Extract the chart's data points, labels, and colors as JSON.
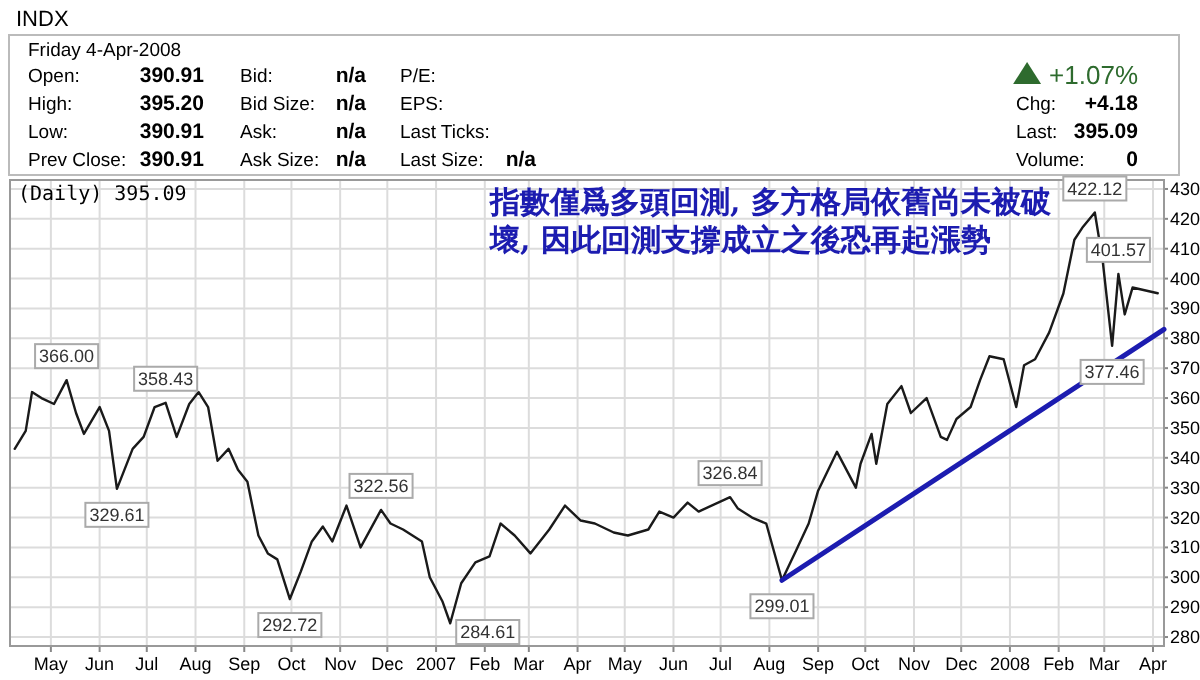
{
  "chart_data": [
    {
      "type": "other",
      "title": "INDX",
      "annotations": [
        "Friday  4-Apr-2008",
        "Open:",
        "390.91",
        "High:",
        "395.20",
        "Low:",
        "390.91",
        "Prev Close:",
        "390.91",
        "Bid:",
        "n/a",
        "Bid Size:",
        "n/a",
        "Ask:",
        "n/a",
        "Ask Size:",
        "n/a",
        "P/E:",
        "EPS:",
        "Last Ticks:",
        "Last Size:",
        "n/a",
        "+1.07%",
        "Chg:",
        "+4.18",
        "Last:",
        "395.09",
        "Volume:",
        "0"
      ]
    },
    {
      "type": "line",
      "title": "(Daily) 395.09",
      "grid": true,
      "xlim": [
        "2006-04-05",
        "2008-04-08"
      ],
      "ylim": [
        277,
        433
      ],
      "xticks": [
        {
          "value": "2006-05-01",
          "label": "May"
        },
        {
          "value": "2006-06-01",
          "label": "Jun"
        },
        {
          "value": "2006-07-01",
          "label": "Jul"
        },
        {
          "value": "2006-08-01",
          "label": "Aug"
        },
        {
          "value": "2006-09-01",
          "label": "Sep"
        },
        {
          "value": "2006-10-01",
          "label": "Oct"
        },
        {
          "value": "2006-11-01",
          "label": "Nov"
        },
        {
          "value": "2006-12-01",
          "label": "Dec"
        },
        {
          "value": "2007-01-01",
          "label": "2007"
        },
        {
          "value": "2007-02-01",
          "label": "Feb"
        },
        {
          "value": "2007-03-01",
          "label": "Mar"
        },
        {
          "value": "2007-04-01",
          "label": "Apr"
        },
        {
          "value": "2007-05-01",
          "label": "May"
        },
        {
          "value": "2007-06-01",
          "label": "Jun"
        },
        {
          "value": "2007-07-01",
          "label": "Jul"
        },
        {
          "value": "2007-08-01",
          "label": "Aug"
        },
        {
          "value": "2007-09-01",
          "label": "Sep"
        },
        {
          "value": "2007-10-01",
          "label": "Oct"
        },
        {
          "value": "2007-11-01",
          "label": "Nov"
        },
        {
          "value": "2007-12-01",
          "label": "Dec"
        },
        {
          "value": "2008-01-01",
          "label": "2008"
        },
        {
          "value": "2008-02-01",
          "label": "Feb"
        },
        {
          "value": "2008-03-01",
          "label": "Mar"
        },
        {
          "value": "2008-04-01",
          "label": "Apr"
        }
      ],
      "yticks": [
        280,
        290,
        300,
        310,
        320,
        330,
        340,
        350,
        360,
        370,
        380,
        390,
        400,
        410,
        420,
        430
      ],
      "series": [
        {
          "color": "#1a1a1a",
          "x": [
            "2006-04-08",
            "2006-04-15",
            "2006-04-19",
            "2006-04-25",
            "2006-05-03",
            "2006-05-11",
            "2006-05-17",
            "2006-05-22",
            "2006-06-01",
            "2006-06-07",
            "2006-06-12",
            "2006-06-22",
            "2006-06-29",
            "2006-07-06",
            "2006-07-13",
            "2006-07-20",
            "2006-07-28",
            "2006-08-03",
            "2006-08-09",
            "2006-08-15",
            "2006-08-22",
            "2006-08-28",
            "2006-09-03",
            "2006-09-10",
            "2006-09-16",
            "2006-09-22",
            "2006-09-30",
            "2006-10-07",
            "2006-10-14",
            "2006-10-21",
            "2006-10-27",
            "2006-11-05",
            "2006-11-14",
            "2006-11-27",
            "2006-12-03",
            "2006-12-11",
            "2006-12-23",
            "2006-12-28",
            "2007-01-05",
            "2007-01-10",
            "2007-01-17",
            "2007-01-26",
            "2007-02-04",
            "2007-02-11",
            "2007-02-20",
            "2007-03-02",
            "2007-03-14",
            "2007-03-24",
            "2007-04-03",
            "2007-04-12",
            "2007-04-24",
            "2007-05-03",
            "2007-05-16",
            "2007-05-23",
            "2007-06-01",
            "2007-06-10",
            "2007-06-17",
            "2007-07-07",
            "2007-07-12",
            "2007-07-21",
            "2007-07-30",
            "2007-08-09",
            "2007-08-18",
            "2007-08-26",
            "2007-09-01",
            "2007-09-13",
            "2007-09-25",
            "2007-09-28",
            "2007-10-05",
            "2007-10-08",
            "2007-10-15",
            "2007-10-24",
            "2007-10-30",
            "2007-11-09",
            "2007-11-18",
            "2007-11-22",
            "2007-11-28",
            "2007-12-07",
            "2007-12-13",
            "2007-12-19",
            "2007-12-28",
            "2008-01-05",
            "2008-01-10",
            "2008-01-17",
            "2008-01-26",
            "2008-02-04",
            "2008-02-11",
            "2008-02-16",
            "2008-02-24",
            "2008-02-29",
            "2008-03-06",
            "2008-03-10",
            "2008-03-14",
            "2008-03-19",
            "2008-04-04"
          ],
          "values": [
            343,
            349,
            362,
            360,
            358,
            366.0,
            355,
            348,
            357,
            349,
            329.61,
            343,
            347,
            357,
            358.43,
            347,
            358,
            362,
            357,
            339,
            343,
            336,
            332,
            314,
            308,
            306,
            292.72,
            302,
            312,
            317,
            312,
            324,
            310,
            322.56,
            318,
            316,
            312,
            300,
            292,
            284.61,
            298,
            305,
            307,
            318,
            314,
            308,
            316,
            324,
            319,
            318,
            315,
            314,
            316,
            322,
            320,
            325,
            322,
            326.84,
            323,
            320,
            318,
            299.01,
            309,
            318,
            329,
            342,
            330,
            338,
            348,
            338,
            358,
            364,
            355,
            360,
            347,
            346,
            353,
            357,
            366,
            374,
            373,
            357,
            371,
            373,
            382,
            395,
            413,
            417,
            422.12,
            406,
            377.46,
            401.57,
            388,
            397,
            395.09
          ]
        },
        {
          "color": "#1c1cb0",
          "x": [
            "2007-08-09",
            "2008-04-08"
          ],
          "values": [
            299,
            383
          ]
        }
      ],
      "annotations": [
        "指數僅爲多頭回測, 多方格局依舊尚未被破壞, 因此回測支撐成立之後恐再起漲勢",
        {
          "text": "366.00",
          "x": "2006-05-11",
          "y": 366.0
        },
        {
          "text": "329.61",
          "x": "2006-06-12",
          "y": 329.61
        },
        {
          "text": "358.43",
          "x": "2006-07-13",
          "y": 358.43
        },
        {
          "text": "292.72",
          "x": "2006-09-30",
          "y": 292.72
        },
        {
          "text": "322.56",
          "x": "2006-11-27",
          "y": 322.56
        },
        {
          "text": "284.61",
          "x": "2007-01-10",
          "y": 284.61
        },
        {
          "text": "326.84",
          "x": "2007-07-07",
          "y": 326.84
        },
        {
          "text": "299.01",
          "x": "2007-08-09",
          "y": 299.01
        },
        {
          "text": "422.12",
          "x": "2008-02-24",
          "y": 422.12
        },
        {
          "text": "377.46",
          "x": "2008-03-06",
          "y": 377.46
        },
        {
          "text": "401.57",
          "x": "2008-03-10",
          "y": 401.57
        }
      ]
    }
  ]
}
